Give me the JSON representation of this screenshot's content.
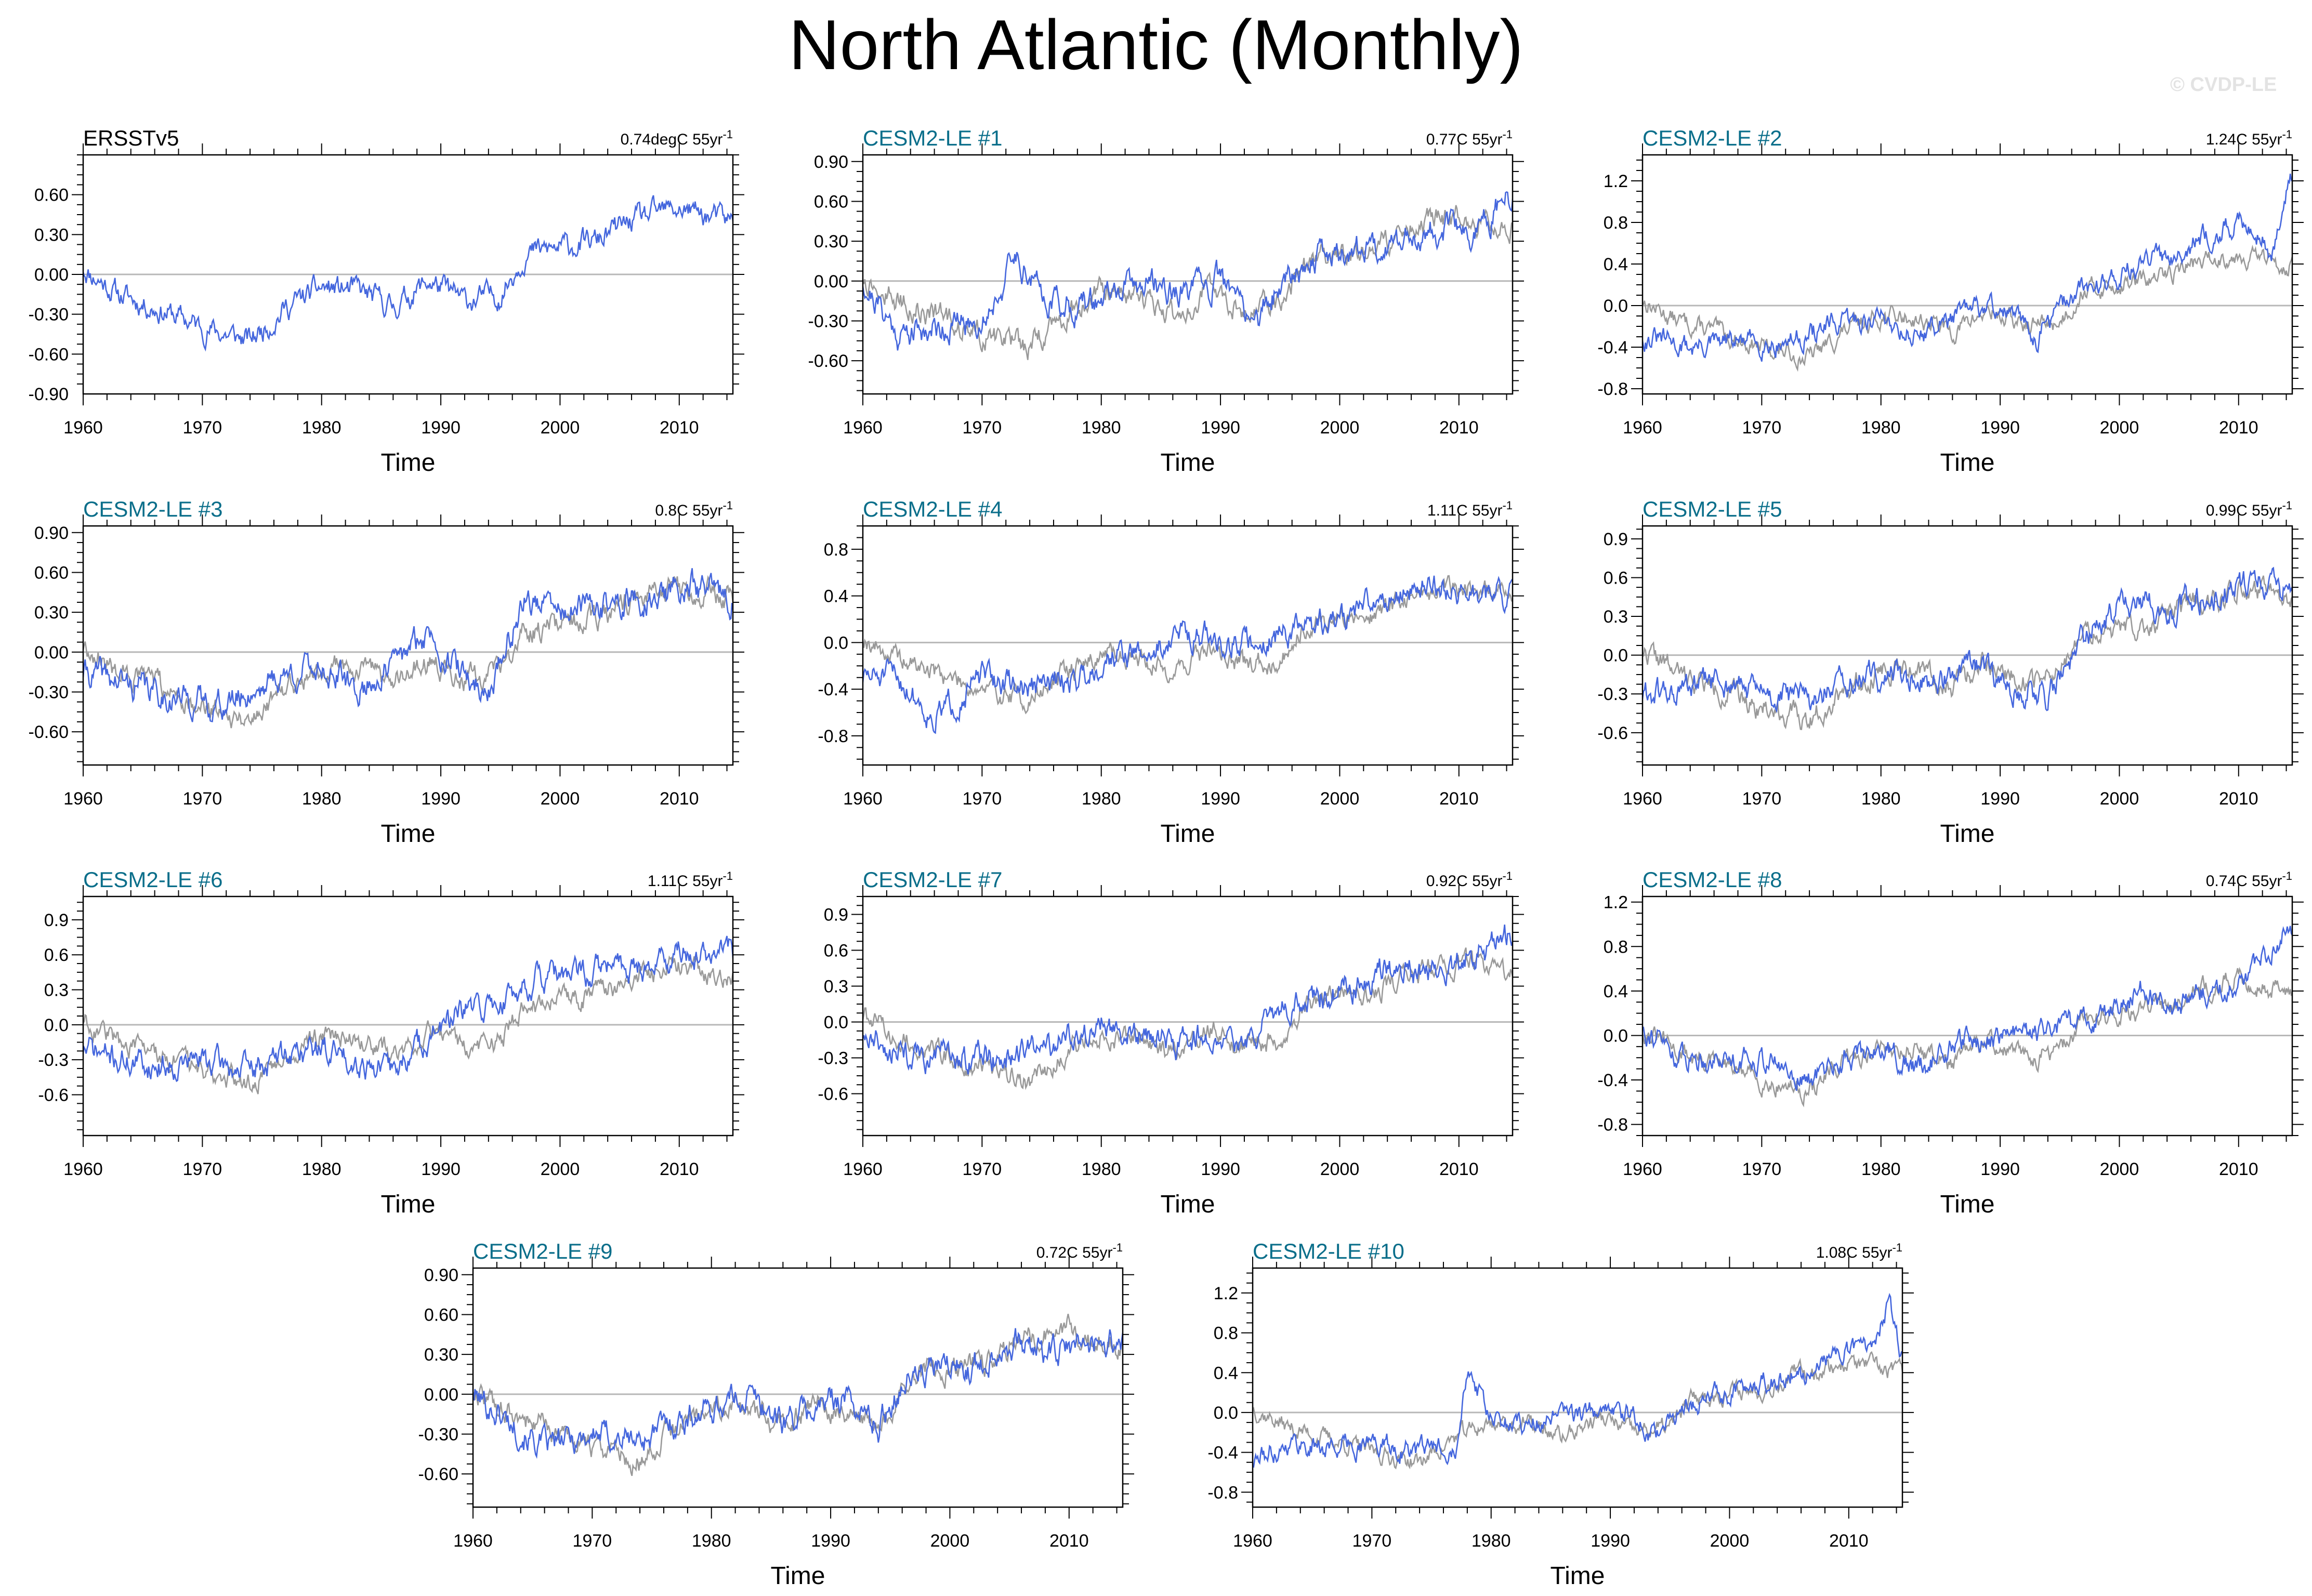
{
  "title": "North Atlantic (Monthly)",
  "watermark": "© CVDP-LE",
  "colors": {
    "model": "#4466dd",
    "obs_overlay": "#999999",
    "zero_line": "#b8b8b8",
    "panel_title_obs": "#000000",
    "panel_title_model": "#0a6e8a"
  },
  "chart_data": [
    {
      "type": "line",
      "title": "ERSSTv5",
      "trend": "0.74degC 55yr",
      "trend_sup": "-1",
      "xlabel": "Time",
      "xlim": [
        1960,
        2014.5
      ],
      "ylim": [
        -0.9,
        0.9
      ],
      "yticks": [
        -0.9,
        -0.6,
        -0.3,
        0.0,
        0.3,
        0.6
      ],
      "ytick_labels": [
        "-0.90",
        "-0.60",
        "-0.30",
        "0.00",
        "0.30",
        "0.60"
      ],
      "xticks": [
        1960,
        1970,
        1980,
        1990,
        2000,
        2010
      ],
      "xtick_labels": [
        "1960",
        "1970",
        "1980",
        "1990",
        "2000",
        "2010"
      ],
      "overlay": false,
      "seed": 11,
      "noise": 0.1,
      "trend_end": 0.45,
      "anchors": [
        [
          1960,
          0.05
        ],
        [
          1963,
          -0.15
        ],
        [
          1966,
          -0.25
        ],
        [
          1970,
          -0.4
        ],
        [
          1974,
          -0.5
        ],
        [
          1977,
          -0.25
        ],
        [
          1980,
          -0.1
        ],
        [
          1983,
          -0.12
        ],
        [
          1986,
          -0.25
        ],
        [
          1989,
          -0.05
        ],
        [
          1992,
          -0.2
        ],
        [
          1995,
          -0.15
        ],
        [
          1997,
          0.15
        ],
        [
          2000,
          0.2
        ],
        [
          2003,
          0.25
        ],
        [
          2006,
          0.4
        ],
        [
          2010,
          0.5
        ],
        [
          2014,
          0.4
        ]
      ]
    },
    {
      "type": "line",
      "title": "CESM2-LE #1",
      "trend": "0.77C 55yr",
      "trend_sup": "-1",
      "xlabel": "Time",
      "xlim": [
        1960,
        2014.5
      ],
      "ylim": [
        -0.85,
        0.95
      ],
      "yticks": [
        -0.6,
        -0.3,
        0.0,
        0.3,
        0.6,
        0.9
      ],
      "ytick_labels": [
        "-0.60",
        "-0.30",
        "0.00",
        "0.30",
        "0.60",
        "0.90"
      ],
      "xticks": [
        1960,
        1970,
        1980,
        1990,
        2000,
        2010
      ],
      "xtick_labels": [
        "1960",
        "1970",
        "1980",
        "1990",
        "2000",
        "2010"
      ],
      "overlay": true,
      "seed": 21,
      "noise": 0.12,
      "trend_end": 0.55,
      "anchors": [
        [
          1960,
          0.0
        ],
        [
          1963,
          -0.4
        ],
        [
          1966,
          -0.35
        ],
        [
          1970,
          -0.3
        ],
        [
          1973,
          0.2
        ],
        [
          1975,
          -0.1
        ],
        [
          1978,
          -0.2
        ],
        [
          1981,
          -0.1
        ],
        [
          1984,
          0.0
        ],
        [
          1987,
          -0.1
        ],
        [
          1990,
          0.0
        ],
        [
          1993,
          -0.3
        ],
        [
          1996,
          0.1
        ],
        [
          1999,
          0.2
        ],
        [
          2002,
          0.25
        ],
        [
          2005,
          0.3
        ],
        [
          2008,
          0.4
        ],
        [
          2011,
          0.35
        ],
        [
          2014,
          0.6
        ]
      ]
    },
    {
      "type": "line",
      "title": "CESM2-LE #2",
      "trend": "1.24C 55yr",
      "trend_sup": "-1",
      "xlabel": "Time",
      "xlim": [
        1960,
        2014.5
      ],
      "ylim": [
        -0.85,
        1.45
      ],
      "yticks": [
        -0.8,
        -0.4,
        0.0,
        0.4,
        0.8,
        1.2
      ],
      "ytick_labels": [
        "-0.8",
        "-0.4",
        "0.0",
        "0.4",
        "0.8",
        "1.2"
      ],
      "xticks": [
        1960,
        1970,
        1980,
        1990,
        2000,
        2010
      ],
      "xtick_labels": [
        "1960",
        "1970",
        "1980",
        "1990",
        "2000",
        "2010"
      ],
      "overlay": true,
      "seed": 31,
      "noise": 0.12,
      "trend_end": 0.85,
      "anchors": [
        [
          1960,
          -0.3
        ],
        [
          1964,
          -0.4
        ],
        [
          1968,
          -0.35
        ],
        [
          1972,
          -0.35
        ],
        [
          1976,
          -0.2
        ],
        [
          1980,
          -0.1
        ],
        [
          1983,
          -0.3
        ],
        [
          1986,
          -0.1
        ],
        [
          1990,
          0.0
        ],
        [
          1993,
          -0.3
        ],
        [
          1996,
          0.1
        ],
        [
          2000,
          0.3
        ],
        [
          2004,
          0.5
        ],
        [
          2008,
          0.7
        ],
        [
          2011,
          0.8
        ],
        [
          2013,
          0.5
        ],
        [
          2014.3,
          1.25
        ]
      ]
    },
    {
      "type": "line",
      "title": "CESM2-LE #3",
      "trend": "0.8C 55yr",
      "trend_sup": "-1",
      "xlabel": "Time",
      "xlim": [
        1960,
        2014.5
      ],
      "ylim": [
        -0.85,
        0.95
      ],
      "yticks": [
        -0.6,
        -0.3,
        0.0,
        0.3,
        0.6,
        0.9
      ],
      "ytick_labels": [
        "-0.60",
        "-0.30",
        "0.00",
        "0.30",
        "0.60",
        "0.90"
      ],
      "xticks": [
        1960,
        1970,
        1980,
        1990,
        2000,
        2010
      ],
      "xtick_labels": [
        "1960",
        "1970",
        "1980",
        "1990",
        "2000",
        "2010"
      ],
      "overlay": true,
      "seed": 41,
      "noise": 0.12,
      "trend_end": 0.55,
      "anchors": [
        [
          1960,
          -0.15
        ],
        [
          1964,
          -0.25
        ],
        [
          1968,
          -0.35
        ],
        [
          1972,
          -0.4
        ],
        [
          1976,
          -0.2
        ],
        [
          1980,
          -0.1
        ],
        [
          1983,
          -0.3
        ],
        [
          1986,
          -0.1
        ],
        [
          1989,
          0.15
        ],
        [
          1992,
          -0.2
        ],
        [
          1994,
          -0.3
        ],
        [
          1997,
          0.4
        ],
        [
          2000,
          0.3
        ],
        [
          2004,
          0.35
        ],
        [
          2008,
          0.4
        ],
        [
          2011,
          0.5
        ],
        [
          2014,
          0.4
        ]
      ]
    },
    {
      "type": "line",
      "title": "CESM2-LE #4",
      "trend": "1.11C 55yr",
      "trend_sup": "-1",
      "xlabel": "Time",
      "xlim": [
        1960,
        2014.5
      ],
      "ylim": [
        -1.05,
        1.0
      ],
      "yticks": [
        -0.8,
        -0.4,
        0.0,
        0.4,
        0.8
      ],
      "ytick_labels": [
        "-0.8",
        "-0.4",
        "0.0",
        "0.4",
        "0.8"
      ],
      "xticks": [
        1960,
        1970,
        1980,
        1990,
        2000,
        2010
      ],
      "xtick_labels": [
        "1960",
        "1970",
        "1980",
        "1990",
        "2000",
        "2010"
      ],
      "overlay": true,
      "seed": 51,
      "noise": 0.13,
      "trend_end": 0.55,
      "anchors": [
        [
          1960,
          -0.3
        ],
        [
          1963,
          -0.3
        ],
        [
          1966,
          -0.65
        ],
        [
          1970,
          -0.3
        ],
        [
          1974,
          -0.4
        ],
        [
          1978,
          -0.3
        ],
        [
          1981,
          -0.1
        ],
        [
          1984,
          -0.1
        ],
        [
          1987,
          0.1
        ],
        [
          1990,
          0.0
        ],
        [
          1993,
          0.0
        ],
        [
          1996,
          0.1
        ],
        [
          2000,
          0.2
        ],
        [
          2004,
          0.4
        ],
        [
          2008,
          0.5
        ],
        [
          2011,
          0.4
        ],
        [
          2014,
          0.4
        ]
      ]
    },
    {
      "type": "line",
      "title": "CESM2-LE #5",
      "trend": "0.99C 55yr",
      "trend_sup": "-1",
      "xlabel": "Time",
      "xlim": [
        1960,
        2014.5
      ],
      "ylim": [
        -0.85,
        1.0
      ],
      "yticks": [
        -0.6,
        -0.3,
        0.0,
        0.3,
        0.6,
        0.9
      ],
      "ytick_labels": [
        "-0.6",
        "-0.3",
        "0.0",
        "0.3",
        "0.6",
        "0.9"
      ],
      "xticks": [
        1960,
        1970,
        1980,
        1990,
        2000,
        2010
      ],
      "xtick_labels": [
        "1960",
        "1970",
        "1980",
        "1990",
        "2000",
        "2010"
      ],
      "overlay": true,
      "seed": 61,
      "noise": 0.12,
      "trend_end": 0.6,
      "anchors": [
        [
          1960,
          -0.3
        ],
        [
          1963,
          -0.3
        ],
        [
          1966,
          -0.2
        ],
        [
          1970,
          -0.3
        ],
        [
          1974,
          -0.35
        ],
        [
          1978,
          -0.2
        ],
        [
          1981,
          -0.15
        ],
        [
          1985,
          -0.2
        ],
        [
          1988,
          -0.1
        ],
        [
          1991,
          -0.25
        ],
        [
          1994,
          -0.3
        ],
        [
          1997,
          0.1
        ],
        [
          2000,
          0.4
        ],
        [
          2003,
          0.35
        ],
        [
          2006,
          0.4
        ],
        [
          2009,
          0.5
        ],
        [
          2012,
          0.6
        ],
        [
          2014,
          0.5
        ]
      ]
    },
    {
      "type": "line",
      "title": "CESM2-LE #6",
      "trend": "1.11C 55yr",
      "trend_sup": "-1",
      "xlabel": "Time",
      "xlim": [
        1960,
        2014.5
      ],
      "ylim": [
        -0.95,
        1.1
      ],
      "yticks": [
        -0.6,
        -0.3,
        0.0,
        0.3,
        0.6,
        0.9
      ],
      "ytick_labels": [
        "-0.6",
        "-0.3",
        "0.0",
        "0.3",
        "0.6",
        "0.9"
      ],
      "xticks": [
        1960,
        1970,
        1980,
        1990,
        2000,
        2010
      ],
      "xtick_labels": [
        "1960",
        "1970",
        "1980",
        "1990",
        "2000",
        "2010"
      ],
      "overlay": true,
      "seed": 71,
      "noise": 0.13,
      "trend_end": 0.6,
      "anchors": [
        [
          1960,
          -0.2
        ],
        [
          1963,
          -0.3
        ],
        [
          1966,
          -0.35
        ],
        [
          1970,
          -0.3
        ],
        [
          1974,
          -0.4
        ],
        [
          1977,
          -0.25
        ],
        [
          1980,
          -0.2
        ],
        [
          1983,
          -0.3
        ],
        [
          1986,
          -0.4
        ],
        [
          1989,
          -0.1
        ],
        [
          1992,
          0.1
        ],
        [
          1995,
          0.2
        ],
        [
          1998,
          0.4
        ],
        [
          2001,
          0.4
        ],
        [
          2004,
          0.5
        ],
        [
          2007,
          0.5
        ],
        [
          2010,
          0.6
        ],
        [
          2014,
          0.6
        ]
      ]
    },
    {
      "type": "line",
      "title": "CESM2-LE #7",
      "trend": "0.92C 55yr",
      "trend_sup": "-1",
      "xlabel": "Time",
      "xlim": [
        1960,
        2014.5
      ],
      "ylim": [
        -0.95,
        1.05
      ],
      "yticks": [
        -0.6,
        -0.3,
        0.0,
        0.3,
        0.6,
        0.9
      ],
      "ytick_labels": [
        "-0.6",
        "-0.3",
        "0.0",
        "0.3",
        "0.6",
        "0.9"
      ],
      "xticks": [
        1960,
        1970,
        1980,
        1990,
        2000,
        2010
      ],
      "xtick_labels": [
        "1960",
        "1970",
        "1980",
        "1990",
        "2000",
        "2010"
      ],
      "overlay": true,
      "seed": 81,
      "noise": 0.13,
      "trend_end": 0.55,
      "anchors": [
        [
          1960,
          -0.1
        ],
        [
          1964,
          -0.3
        ],
        [
          1968,
          -0.3
        ],
        [
          1972,
          -0.3
        ],
        [
          1976,
          -0.2
        ],
        [
          1980,
          0.0
        ],
        [
          1983,
          -0.1
        ],
        [
          1986,
          -0.2
        ],
        [
          1989,
          -0.1
        ],
        [
          1992,
          -0.2
        ],
        [
          1995,
          0.1
        ],
        [
          1998,
          0.2
        ],
        [
          2001,
          0.3
        ],
        [
          2004,
          0.45
        ],
        [
          2007,
          0.4
        ],
        [
          2010,
          0.5
        ],
        [
          2014,
          0.7
        ]
      ]
    },
    {
      "type": "line",
      "title": "CESM2-LE #8",
      "trend": "0.74C 55yr",
      "trend_sup": "-1",
      "xlabel": "Time",
      "xlim": [
        1960,
        2014.5
      ],
      "ylim": [
        -0.9,
        1.25
      ],
      "yticks": [
        -0.8,
        -0.4,
        0.0,
        0.4,
        0.8,
        1.2
      ],
      "ytick_labels": [
        "-0.8",
        "-0.4",
        "0.0",
        "0.4",
        "0.8",
        "1.2"
      ],
      "xticks": [
        1960,
        1970,
        1980,
        1990,
        2000,
        2010
      ],
      "xtick_labels": [
        "1960",
        "1970",
        "1980",
        "1990",
        "2000",
        "2010"
      ],
      "overlay": true,
      "seed": 91,
      "noise": 0.12,
      "trend_end": 0.55,
      "anchors": [
        [
          1960,
          0.1
        ],
        [
          1963,
          -0.2
        ],
        [
          1967,
          -0.2
        ],
        [
          1970,
          -0.2
        ],
        [
          1974,
          -0.4
        ],
        [
          1977,
          -0.2
        ],
        [
          1980,
          -0.1
        ],
        [
          1983,
          -0.3
        ],
        [
          1986,
          -0.1
        ],
        [
          1990,
          0.0
        ],
        [
          1993,
          0.0
        ],
        [
          1996,
          0.1
        ],
        [
          1999,
          0.2
        ],
        [
          2002,
          0.4
        ],
        [
          2005,
          0.3
        ],
        [
          2008,
          0.4
        ],
        [
          2011,
          0.5
        ],
        [
          2014,
          1.0
        ]
      ]
    },
    {
      "type": "line",
      "title": "CESM2-LE #9",
      "trend": "0.72C 55yr",
      "trend_sup": "-1",
      "xlabel": "Time",
      "xlim": [
        1960,
        2014.5
      ],
      "ylim": [
        -0.85,
        0.95
      ],
      "yticks": [
        -0.6,
        -0.3,
        0.0,
        0.3,
        0.6,
        0.9
      ],
      "ytick_labels": [
        "-0.60",
        "-0.30",
        "0.00",
        "0.30",
        "0.60",
        "0.90"
      ],
      "xticks": [
        1960,
        1970,
        1980,
        1990,
        2000,
        2010
      ],
      "xtick_labels": [
        "1960",
        "1970",
        "1980",
        "1990",
        "2000",
        "2010"
      ],
      "overlay": true,
      "seed": 101,
      "noise": 0.12,
      "trend_end": 0.5,
      "anchors": [
        [
          1960,
          0.0
        ],
        [
          1963,
          -0.2
        ],
        [
          1966,
          -0.4
        ],
        [
          1970,
          -0.3
        ],
        [
          1974,
          -0.35
        ],
        [
          1977,
          -0.2
        ],
        [
          1980,
          -0.1
        ],
        [
          1983,
          0.0
        ],
        [
          1986,
          -0.2
        ],
        [
          1989,
          -0.1
        ],
        [
          1991,
          0.0
        ],
        [
          1994,
          -0.25
        ],
        [
          1996,
          0.1
        ],
        [
          1999,
          0.2
        ],
        [
          2002,
          0.2
        ],
        [
          2005,
          0.4
        ],
        [
          2009,
          0.3
        ],
        [
          2012,
          0.4
        ],
        [
          2014,
          0.4
        ]
      ]
    },
    {
      "type": "line",
      "title": "CESM2-LE #10",
      "trend": "1.08C 55yr",
      "trend_sup": "-1",
      "xlabel": "Time",
      "xlim": [
        1960,
        2014.5
      ],
      "ylim": [
        -0.95,
        1.45
      ],
      "yticks": [
        -0.8,
        -0.4,
        0.0,
        0.4,
        0.8,
        1.2
      ],
      "ytick_labels": [
        "-0.8",
        "-0.4",
        "0.0",
        "0.4",
        "0.8",
        "1.2"
      ],
      "xticks": [
        1960,
        1970,
        1980,
        1990,
        2000,
        2010
      ],
      "xtick_labels": [
        "1960",
        "1970",
        "1980",
        "1990",
        "2000",
        "2010"
      ],
      "overlay": true,
      "seed": 111,
      "noise": 0.12,
      "trend_end": 0.6,
      "anchors": [
        [
          1960,
          -0.5
        ],
        [
          1963,
          -0.3
        ],
        [
          1966,
          -0.35
        ],
        [
          1970,
          -0.3
        ],
        [
          1974,
          -0.4
        ],
        [
          1977,
          -0.3
        ],
        [
          1978,
          0.5
        ],
        [
          1980,
          -0.1
        ],
        [
          1984,
          -0.1
        ],
        [
          1988,
          0.0
        ],
        [
          1991,
          0.0
        ],
        [
          1994,
          -0.2
        ],
        [
          1997,
          0.1
        ],
        [
          2000,
          0.2
        ],
        [
          2003,
          0.3
        ],
        [
          2006,
          0.4
        ],
        [
          2009,
          0.6
        ],
        [
          2012,
          0.7
        ],
        [
          2013.5,
          1.15
        ],
        [
          2014.3,
          0.6
        ]
      ]
    }
  ]
}
